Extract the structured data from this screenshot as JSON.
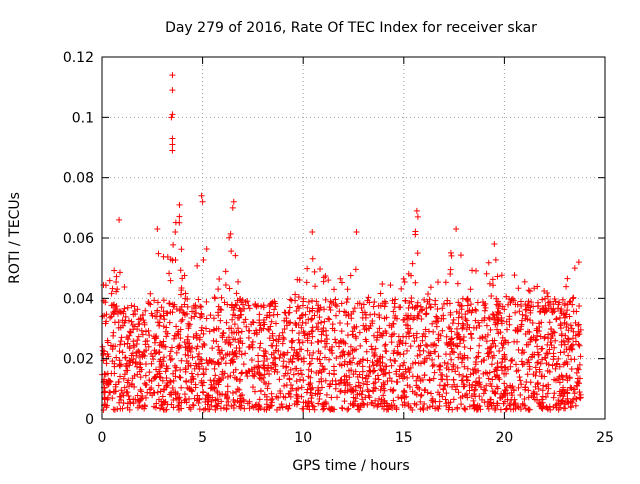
{
  "chart_data": {
    "type": "scatter",
    "title": "Day 279 of 2016, Rate Of TEC Index for receiver skar",
    "xlabel": "GPS time / hours",
    "ylabel": "ROTI / TECUs",
    "xlim": [
      0,
      25
    ],
    "ylim": [
      0,
      0.12
    ],
    "xticks": [
      0,
      5,
      10,
      15,
      20,
      25
    ],
    "xtick_labels": [
      "0",
      "5",
      "10",
      "15",
      "20",
      "25"
    ],
    "yticks": [
      0,
      0.02,
      0.04,
      0.06,
      0.08,
      0.1,
      0.12
    ],
    "ytick_labels": [
      "0",
      "0.02",
      "0.04",
      "0.06",
      "0.08",
      "0.1",
      "0.12"
    ],
    "grid": true,
    "marker": "+",
    "series": [
      {
        "name": "ROTI",
        "color": "#ff0000",
        "x_range": [
          0,
          23.8
        ],
        "bulk_range": [
          0.003,
          0.04
        ],
        "envelope": {
          "x": [
            0,
            0.5,
            0.8,
            1.2,
            2.0,
            2.8,
            3.5,
            3.8,
            4.5,
            5.0,
            5.5,
            6.0,
            6.5,
            7.0,
            7.5,
            8.5,
            9.5,
            10.5,
            11.0,
            12.0,
            12.5,
            13.0,
            14.0,
            15.0,
            15.5,
            16.0,
            17.0,
            17.5,
            18.5,
            19.5,
            20.5,
            21.5,
            22.5,
            23.3,
            23.8
          ],
          "y": [
            0.045,
            0.05,
            0.06,
            0.04,
            0.035,
            0.06,
            0.06,
            0.07,
            0.045,
            0.07,
            0.05,
            0.045,
            0.07,
            0.05,
            0.04,
            0.04,
            0.05,
            0.055,
            0.05,
            0.05,
            0.055,
            0.045,
            0.045,
            0.05,
            0.065,
            0.055,
            0.05,
            0.06,
            0.05,
            0.055,
            0.05,
            0.045,
            0.04,
            0.05,
            0.035
          ]
        },
        "highlights": [
          {
            "x": 3.5,
            "y": 0.114
          },
          {
            "x": 3.5,
            "y": 0.109
          },
          {
            "x": 3.5,
            "y": 0.101
          },
          {
            "x": 3.45,
            "y": 0.1
          },
          {
            "x": 3.5,
            "y": 0.093
          },
          {
            "x": 3.5,
            "y": 0.091
          },
          {
            "x": 3.5,
            "y": 0.089
          },
          {
            "x": 0.85,
            "y": 0.066
          },
          {
            "x": 2.75,
            "y": 0.063
          },
          {
            "x": 3.85,
            "y": 0.071
          },
          {
            "x": 4.95,
            "y": 0.074
          },
          {
            "x": 5.0,
            "y": 0.072
          },
          {
            "x": 6.55,
            "y": 0.072
          },
          {
            "x": 6.5,
            "y": 0.07
          },
          {
            "x": 10.45,
            "y": 0.062
          },
          {
            "x": 12.65,
            "y": 0.062
          },
          {
            "x": 15.65,
            "y": 0.069
          },
          {
            "x": 15.7,
            "y": 0.067
          },
          {
            "x": 17.6,
            "y": 0.063
          },
          {
            "x": 19.5,
            "y": 0.058
          },
          {
            "x": 23.7,
            "y": 0.052
          },
          {
            "x": 23.5,
            "y": 0.05
          },
          {
            "x": 23.4,
            "y": 0.04
          }
        ]
      }
    ]
  }
}
